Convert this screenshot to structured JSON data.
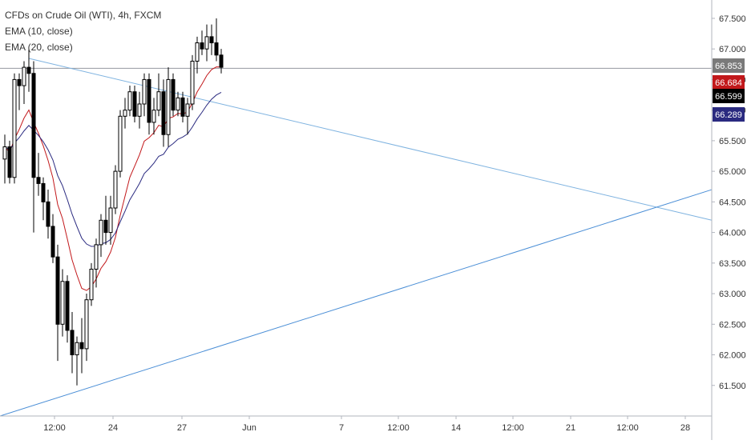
{
  "chart_data": {
    "type": "candlestick",
    "title": "CFDs on Crude Oil (WTI), 4h, FXCM",
    "indicators": [
      {
        "name": "EMA (10, close)",
        "color": "#c2181b",
        "last": 66.684
      },
      {
        "name": "EMA (20, close)",
        "color": "#2a2a80",
        "last": 66.289
      }
    ],
    "y_axis": {
      "range": [
        61.0,
        67.8
      ],
      "ticks": [
        "61.500",
        "62.000",
        "62.500",
        "63.000",
        "63.500",
        "64.000",
        "64.500",
        "65.000",
        "65.500",
        "66.000",
        "66.500",
        "67.000",
        "67.500"
      ]
    },
    "x_axis": {
      "ticks": [
        "12:00",
        "24",
        "27",
        "Jun",
        "7",
        "12:00",
        "14",
        "12:00",
        "21",
        "12:00",
        "28"
      ]
    },
    "price_labels": [
      {
        "value": "66.853",
        "bg": "#7a7a7a",
        "color": "#ffffff"
      },
      {
        "value": "66.684",
        "bg": "#c2181b",
        "color": "#ffffff"
      },
      {
        "value": "66.599",
        "bg": "#000000",
        "color": "#ffffff"
      },
      {
        "value": "66.289",
        "bg": "#2a2a80",
        "color": "#ffffff"
      }
    ],
    "trendlines": [
      {
        "name": "upper",
        "from": [
          0,
          66.97
        ],
        "to": [
          100,
          64.2
        ]
      },
      {
        "name": "lower",
        "from": [
          0,
          61.0
        ],
        "to": [
          100,
          64.7
        ]
      }
    ],
    "candles_ohlc": [
      [
        65.2,
        65.6,
        64.8,
        65.4
      ],
      [
        65.4,
        65.5,
        64.8,
        64.9
      ],
      [
        64.9,
        66.6,
        64.8,
        66.5
      ],
      [
        66.5,
        66.6,
        66.0,
        66.4
      ],
      [
        66.4,
        66.8,
        66.1,
        66.7
      ],
      [
        66.7,
        67.0,
        66.3,
        66.6
      ],
      [
        66.6,
        66.8,
        64.0,
        64.9
      ],
      [
        64.9,
        65.3,
        64.6,
        64.8
      ],
      [
        64.8,
        64.9,
        64.2,
        64.5
      ],
      [
        64.5,
        64.7,
        63.9,
        64.1
      ],
      [
        64.1,
        64.3,
        63.5,
        63.6
      ],
      [
        63.6,
        63.8,
        61.9,
        62.5
      ],
      [
        62.5,
        63.4,
        62.3,
        63.2
      ],
      [
        63.2,
        63.3,
        62.2,
        62.4
      ],
      [
        62.4,
        62.7,
        61.7,
        62.0
      ],
      [
        62.0,
        62.3,
        61.5,
        62.2
      ],
      [
        62.2,
        62.6,
        61.7,
        62.1
      ],
      [
        62.1,
        63.0,
        61.9,
        62.9
      ],
      [
        62.9,
        63.5,
        62.8,
        63.4
      ],
      [
        63.4,
        63.9,
        63.1,
        63.8
      ],
      [
        63.8,
        64.3,
        63.6,
        64.2
      ],
      [
        64.2,
        64.6,
        63.8,
        64.0
      ],
      [
        64.0,
        64.6,
        63.8,
        64.4
      ],
      [
        64.4,
        65.1,
        64.3,
        65.0
      ],
      [
        65.0,
        66.0,
        64.9,
        65.9
      ],
      [
        65.9,
        66.2,
        65.7,
        66.0
      ],
      [
        66.0,
        66.4,
        65.9,
        66.3
      ],
      [
        66.3,
        66.4,
        65.8,
        65.9
      ],
      [
        65.9,
        66.3,
        65.7,
        66.1
      ],
      [
        66.1,
        66.6,
        65.9,
        66.5
      ],
      [
        66.5,
        66.6,
        65.6,
        65.8
      ],
      [
        65.8,
        66.2,
        65.6,
        66.0
      ],
      [
        66.0,
        66.6,
        65.9,
        66.3
      ],
      [
        66.3,
        66.5,
        65.4,
        65.6
      ],
      [
        65.6,
        66.7,
        65.4,
        66.5
      ],
      [
        66.5,
        66.6,
        65.9,
        66.0
      ],
      [
        66.0,
        66.3,
        65.9,
        66.2
      ],
      [
        66.2,
        66.3,
        65.8,
        65.9
      ],
      [
        65.9,
        66.2,
        65.6,
        66.1
      ],
      [
        66.1,
        66.9,
        66.0,
        66.8
      ],
      [
        66.8,
        67.2,
        66.6,
        67.1
      ],
      [
        67.1,
        67.3,
        66.9,
        67.0
      ],
      [
        67.0,
        67.4,
        66.8,
        67.2
      ],
      [
        67.2,
        67.4,
        66.9,
        67.1
      ],
      [
        67.1,
        67.5,
        66.8,
        66.9
      ],
      [
        66.9,
        67.0,
        66.6,
        66.7
      ]
    ]
  }
}
